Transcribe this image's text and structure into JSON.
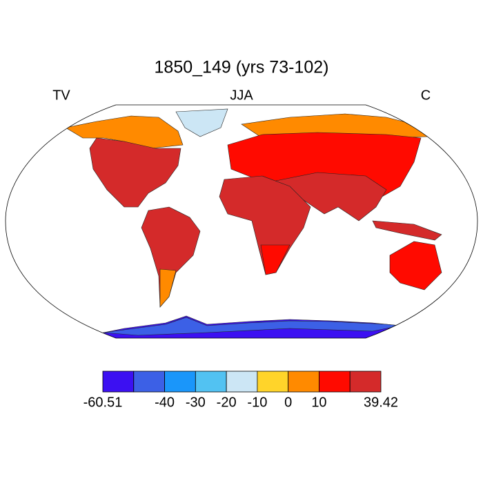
{
  "header": {
    "title": "1850_149 (yrs 73-102)",
    "left": "TV",
    "center": "JJA",
    "right": "C"
  },
  "colorbar": {
    "colors": [
      "#3c10f2",
      "#3c60e6",
      "#1a96fa",
      "#52c2f2",
      "#cce6f5",
      "#ffd42a",
      "#ff8a00",
      "#ff0a00",
      "#d42a2a"
    ],
    "levels": [
      -60.51,
      null,
      -40,
      -30,
      -20,
      -10,
      0,
      10,
      null,
      39.42
    ]
  }
}
